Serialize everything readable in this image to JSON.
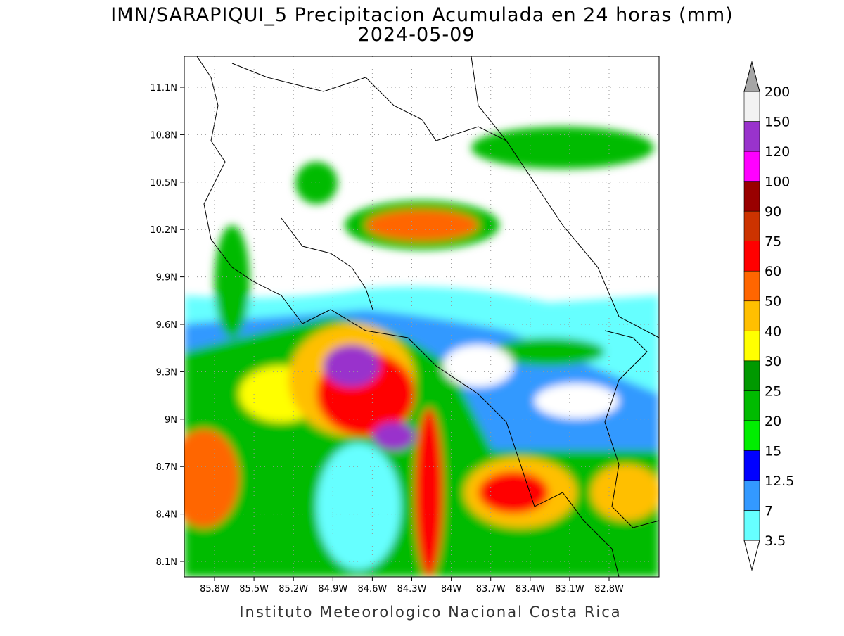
{
  "title": "IMN/SARAPIQUI_5 Precipitacion Acumulada en 24 horas (mm)",
  "date": "2024-05-09",
  "footer": "Instituto Meteorologico Nacional Costa Rica",
  "map": {
    "lat_ticks": [
      "11.1N",
      "10.8N",
      "10.5N",
      "10.2N",
      "9.9N",
      "9.6N",
      "9.3N",
      "9N",
      "8.7N",
      "8.4N",
      "8.1N"
    ],
    "lon_ticks": [
      "85.8W",
      "85.5W",
      "85.2W",
      "84.9W",
      "84.6W",
      "84.3W",
      "84W",
      "83.7W",
      "83.4W",
      "83.1W",
      "82.8W"
    ]
  },
  "legend": {
    "levels": [
      3.5,
      7,
      12.5,
      15,
      20,
      25,
      30,
      40,
      50,
      60,
      75,
      90,
      100,
      120,
      150,
      200
    ],
    "colors": [
      "#ffffff",
      "#66ffff",
      "#3399ff",
      "#0000ff",
      "#00ee00",
      "#00bb00",
      "#009900",
      "#ffff00",
      "#ffbf00",
      "#ff6600",
      "#ff0000",
      "#cc3300",
      "#990000",
      "#ff00ff",
      "#9933cc",
      "#f2f2f2",
      "#a6a6a6"
    ]
  }
}
